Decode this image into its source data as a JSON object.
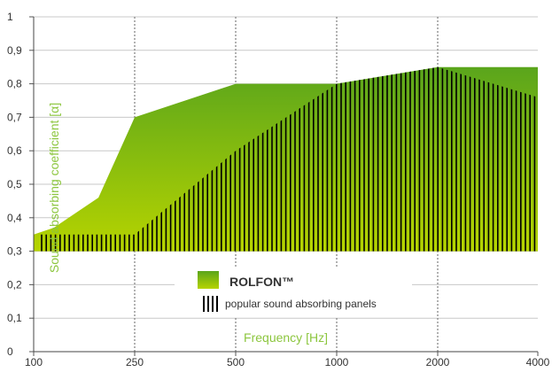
{
  "chart_data": {
    "type": "area",
    "xlabel": "Frequency [Hz]",
    "ylabel": "Sound absorbing coefficient [α]",
    "ylim": [
      0,
      1
    ],
    "yticks": [
      "0",
      "0,1",
      "0,2",
      "0,3",
      "0,4",
      "0,5",
      "0,6",
      "0,7",
      "0,8",
      "0,9",
      "1"
    ],
    "categories": [
      "100",
      "250",
      "500",
      "1000",
      "2000",
      "4000"
    ],
    "grid": true,
    "legend_placement": "center-bottom",
    "series": [
      {
        "name": "ROLFON™",
        "style": "solid-green-gradient",
        "color_top": "#5aa51c",
        "color_bottom": "#b6d400",
        "x": [
          100,
          120,
          180,
          250,
          500,
          1000,
          2000,
          4000
        ],
        "lower": [
          0.3,
          0.3,
          0.3,
          0.3,
          0.3,
          0.3,
          0.3,
          0.3
        ],
        "upper": [
          0.35,
          0.37,
          0.46,
          0.7,
          0.8,
          0.8,
          0.85,
          0.85
        ]
      },
      {
        "name": "popular sound absorbing panels",
        "style": "vertical-black-hatching",
        "color": "#000000",
        "x": [
          100,
          180,
          250,
          500,
          1000,
          2000,
          4000
        ],
        "lower": [
          0.3,
          0.3,
          0.3,
          0.3,
          0.3,
          0.3,
          0.3
        ],
        "upper": [
          0.35,
          0.35,
          0.35,
          0.6,
          0.8,
          0.85,
          0.76
        ]
      }
    ]
  }
}
